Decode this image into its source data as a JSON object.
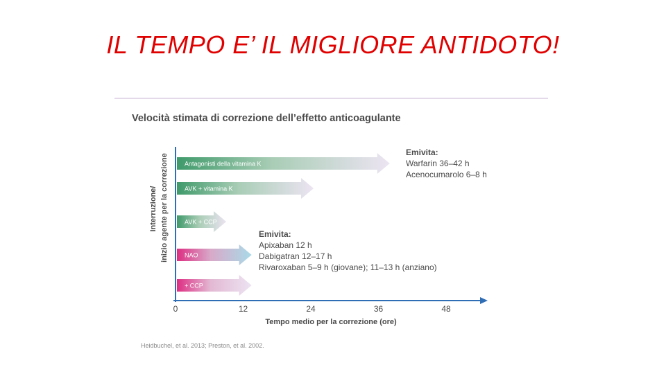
{
  "slide": {
    "title": "IL TEMPO E’ IL MIGLIORE ANTIDOTO!",
    "citation": "Heidbuchel, et al. 2013; Preston, et al. 2002."
  },
  "colors": {
    "title_red": "#e00000",
    "rule": "#c7b3d3",
    "axis_blue": "#2f6db5",
    "vka_green": "#3f9a6a",
    "noac_magenta": "#dd2e83",
    "noac_cyan": "#a9dbe8",
    "ccp_lavender": "#e7dcf0",
    "text_dark": "#4a4a4a"
  },
  "chart_data": {
    "type": "bar",
    "title": "Velocità stimata di correzione dell’effetto anticoagulante",
    "ylabel_lines": [
      "Interruzione/",
      "inizio agente per la correzione"
    ],
    "xlabel": "Tempo medio per la correzione (ore)",
    "x_ticks": [
      0,
      12,
      24,
      36,
      48
    ],
    "xlim": [
      0,
      52
    ],
    "categories": [
      "Antagonisti della vitamina K",
      "AVK + vitamina K",
      "AVK + CCP",
      "NAO",
      "+ CCP"
    ],
    "bars": [
      {
        "label": "Antagonisti della vitamina K",
        "value": 38,
        "group": "vka"
      },
      {
        "label": "AVK + vitamina K",
        "value": 24.5,
        "group": "vka"
      },
      {
        "label": "AVK + CCP",
        "value": 9,
        "group": "vka"
      },
      {
        "label": "NAO",
        "value": 13.5,
        "group": "noac"
      },
      {
        "label": "+ CCP",
        "value": 13.5,
        "group": "noac_ccp"
      }
    ],
    "annotations": [
      {
        "heading": "Emivita:",
        "lines": [
          "Warfarin 36–42 h",
          "Acenocumarolo 6–8 h"
        ]
      },
      {
        "heading": "Emivita:",
        "lines": [
          "Apixaban 12 h",
          "Dabigatran 12–17 h",
          "Rivaroxaban 5–9 h (giovane); 11–13 h (anziano)"
        ]
      }
    ]
  }
}
